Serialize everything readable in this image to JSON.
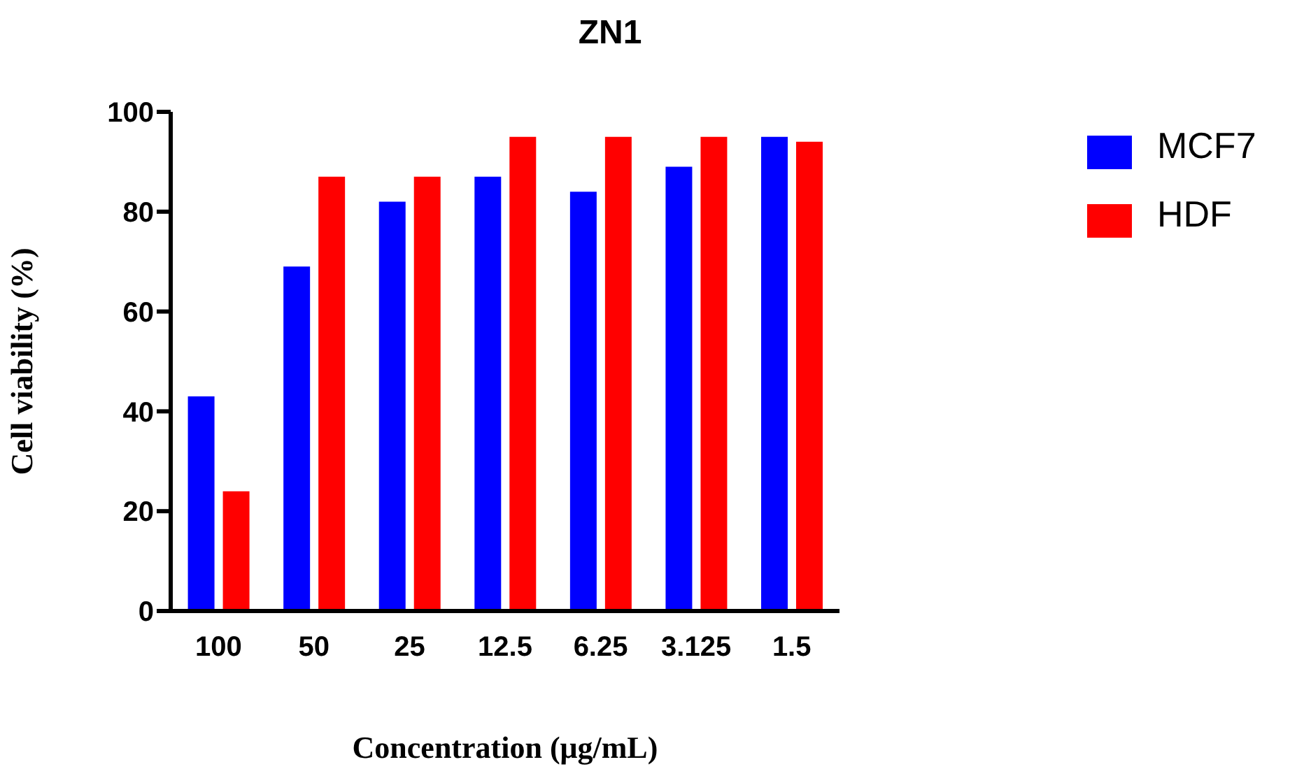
{
  "chart_data": {
    "type": "bar",
    "title": "ZN1",
    "xlabel": "Concentration (μg/mL)",
    "ylabel": "Cell viability (%)",
    "categories": [
      "100",
      "50",
      "25",
      "12.5",
      "6.25",
      "3.125",
      "1.5"
    ],
    "series": [
      {
        "name": "MCF7",
        "color": "#0000ff",
        "values": [
          43,
          69,
          82,
          87,
          84,
          89,
          95
        ]
      },
      {
        "name": "HDF",
        "color": "#ff0000",
        "values": [
          24,
          87,
          87,
          95,
          95,
          95,
          94
        ]
      }
    ],
    "ylim": [
      0,
      100
    ],
    "yticks": [
      0,
      20,
      40,
      60,
      80,
      100
    ],
    "grid": false,
    "legend": "top right"
  }
}
